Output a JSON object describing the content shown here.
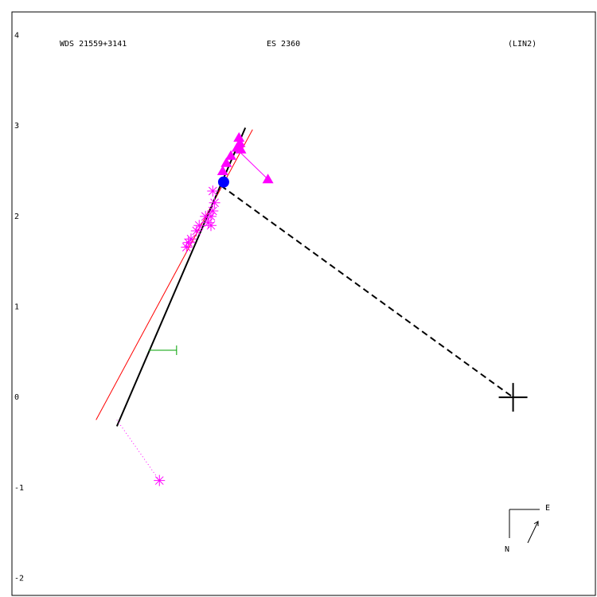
{
  "chart_data": {
    "type": "scatter",
    "titles": [
      "WDS 21559+3141",
      "ES 2360",
      "(LIN2)"
    ],
    "xlim": [
      -5.54,
      0.91
    ],
    "ylim": [
      -2.19,
      4.26
    ],
    "yticks": [
      4,
      3,
      2,
      1,
      0,
      -1,
      -2
    ],
    "compass": [
      "N",
      "E"
    ],
    "lines": [
      {
        "x": [
          -4.61,
          -2.88
        ],
        "y": [
          -0.25,
          2.96
        ],
        "color": "#ff0000",
        "dash": "none",
        "width": 1
      },
      {
        "x": [
          -4.38,
          -2.96
        ],
        "y": [
          -0.32,
          2.98
        ],
        "color": "#000000",
        "dash": "none",
        "width": 2
      },
      {
        "x": [
          -3.23,
          0
        ],
        "y": [
          2.34,
          0
        ],
        "color": "#000000",
        "dash": "8 5",
        "width": 2
      },
      {
        "x": [
          -4.38,
          -3.91
        ],
        "y": [
          -0.25,
          -0.92
        ],
        "color": "#ff00ff",
        "dash": "1 3",
        "width": 1
      },
      {
        "x": [
          -3.03,
          -2.71
        ],
        "y": [
          2.72,
          2.41
        ],
        "color": "#ff00ff",
        "dash": "none",
        "width": 1
      },
      {
        "x": [
          -4.03,
          -3.72
        ],
        "y": [
          0.52,
          0.52
        ],
        "color": "#00a000",
        "dash": "none",
        "width": 1
      }
    ],
    "series": [
      {
        "marker": "asterisk",
        "color": "#ff00ff",
        "x": [
          -3.32,
          -3.3,
          -3.32,
          -3.34,
          -3.37,
          -3.34,
          -3.4,
          -3.47,
          -3.5,
          -3.56,
          -3.59,
          -3.61,
          -3.91
        ],
        "y": [
          2.28,
          2.15,
          2.06,
          2.0,
          1.93,
          1.9,
          2.0,
          1.9,
          1.84,
          1.75,
          1.71,
          1.66,
          -0.92
        ]
      },
      {
        "marker": "triangle",
        "color": "#ff00ff",
        "x": [
          -3.03,
          -3.02,
          -3.05,
          -3.12,
          -3.17,
          -3.21,
          -3.01,
          -2.71
        ],
        "y": [
          2.87,
          2.81,
          2.76,
          2.67,
          2.59,
          2.5,
          2.74,
          2.41
        ]
      },
      {
        "marker": "vtick",
        "color": "#00a000",
        "x": [
          -3.72
        ],
        "y": [
          0.52
        ]
      },
      {
        "marker": "dot",
        "color": "#0000ff",
        "x": [
          -3.2
        ],
        "y": [
          2.38
        ]
      },
      {
        "marker": "cross",
        "color": "#000000",
        "x": [
          0
        ],
        "y": [
          0
        ]
      }
    ]
  }
}
